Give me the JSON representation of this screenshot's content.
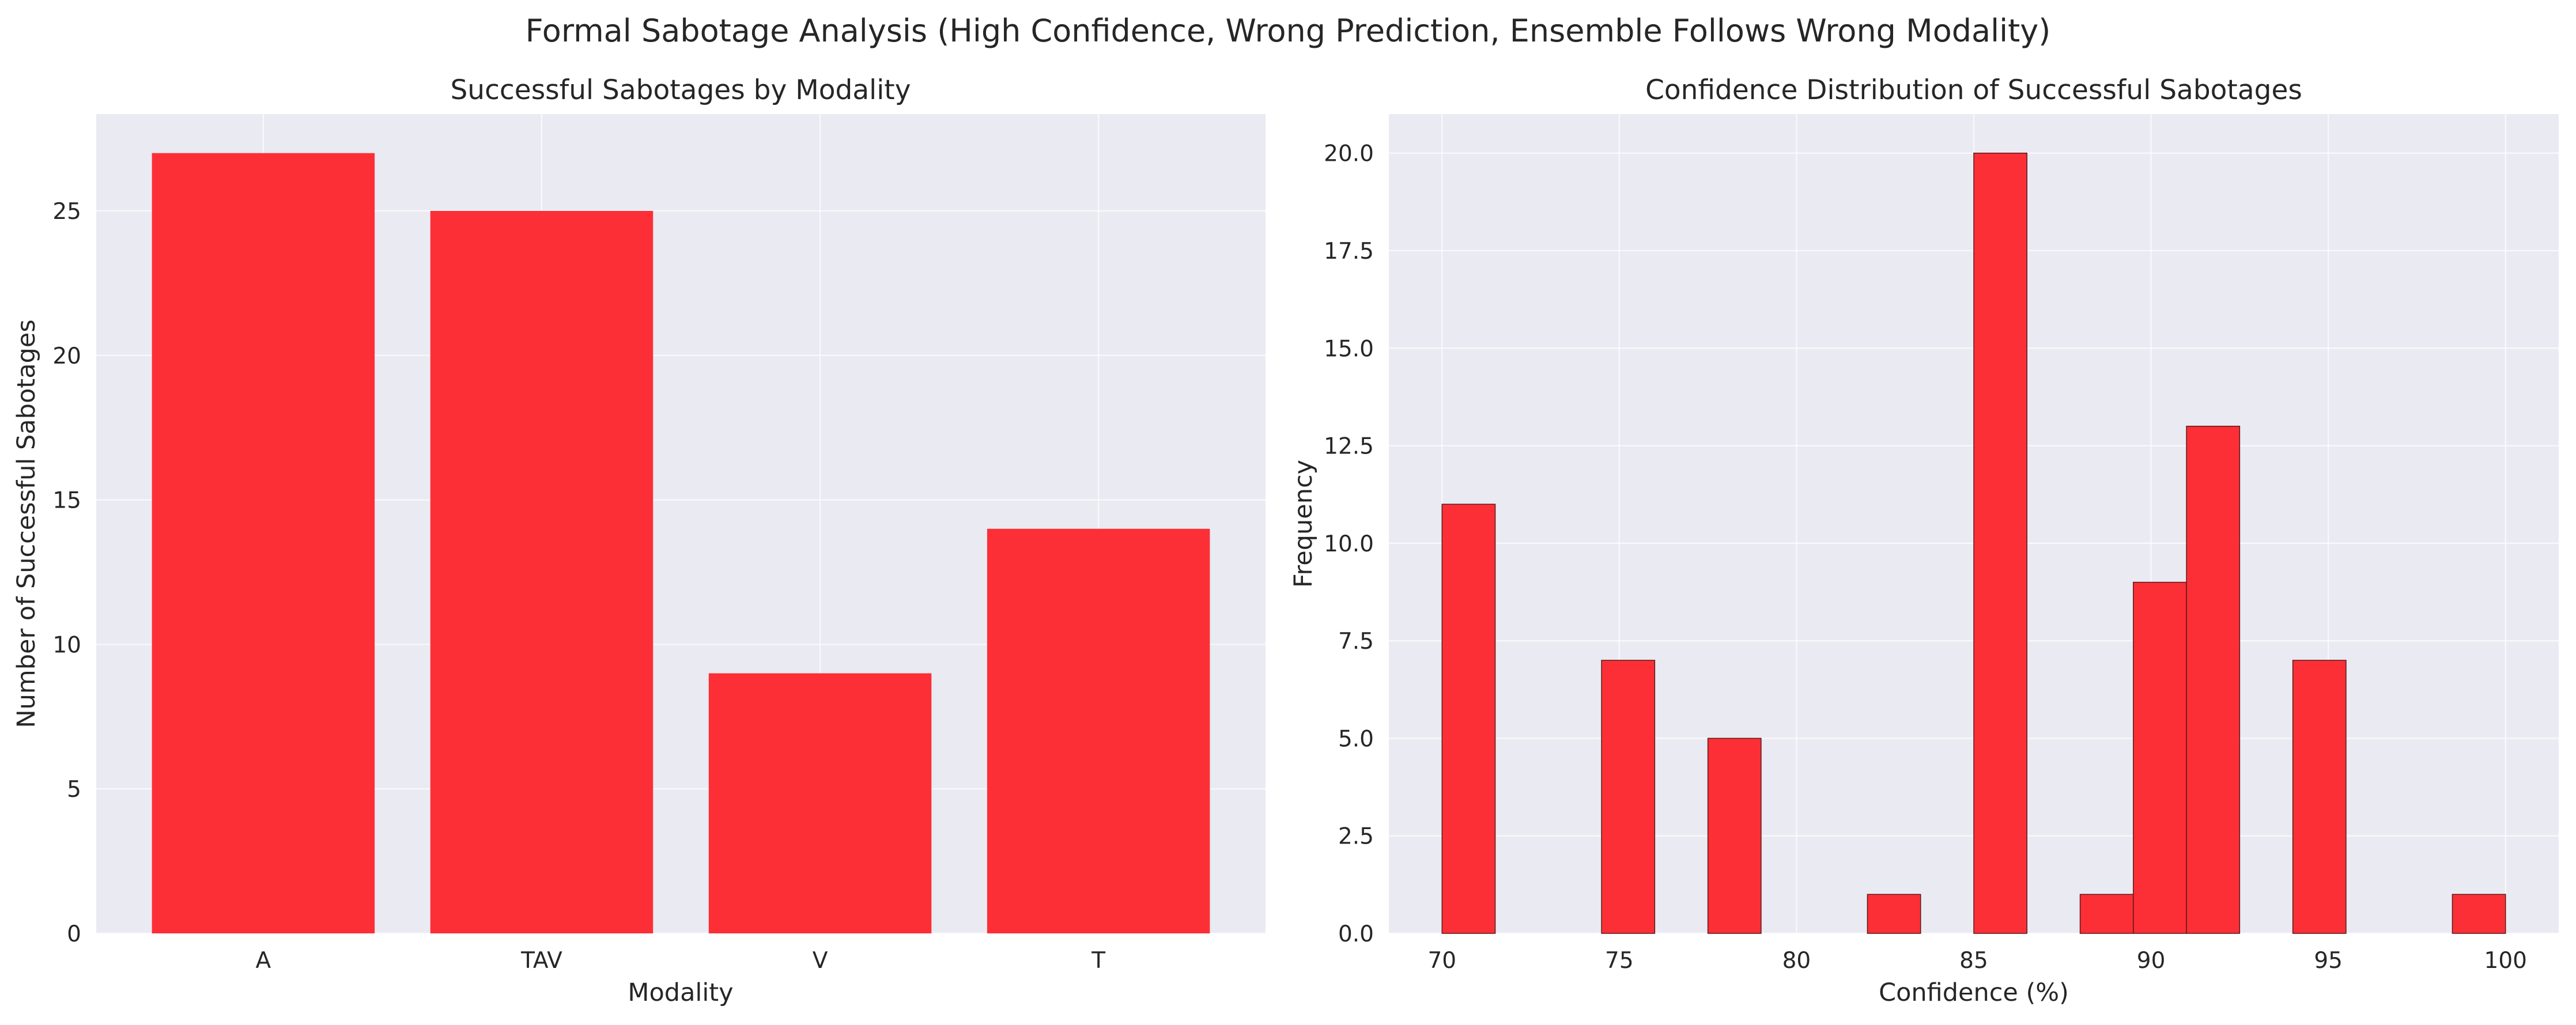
{
  "figure": {
    "title": "Formal Sabotage Analysis (High Confidence, Wrong Prediction, Ensemble Follows Wrong Modality)"
  },
  "colors": {
    "bar": "#fc2f36",
    "edge": "#5a1a1a",
    "plot_bg": "#eaeaf2",
    "grid": "#ffffff"
  },
  "chart_data": [
    {
      "type": "bar",
      "title": "Successful Sabotages by Modality",
      "xlabel": "Modality",
      "ylabel": "Number of Successful Sabotages",
      "categories": [
        "A",
        "TAV",
        "V",
        "T"
      ],
      "values": [
        27,
        25,
        9,
        14
      ],
      "ylim": [
        0,
        28.35
      ],
      "yticks": [
        0,
        5,
        10,
        15,
        20,
        25
      ],
      "ytick_labels": [
        "0",
        "5",
        "10",
        "15",
        "20",
        "25"
      ],
      "grid": true,
      "legend": "none"
    },
    {
      "type": "bar",
      "title": "Confidence Distribution of Successful Sabotages",
      "xlabel": "Confidence (%)",
      "ylabel": "Frequency",
      "bins": [
        {
          "start": 70.0,
          "end": 71.5,
          "count": 11
        },
        {
          "start": 74.5,
          "end": 76.0,
          "count": 7
        },
        {
          "start": 77.5,
          "end": 79.0,
          "count": 5
        },
        {
          "start": 82.0,
          "end": 83.5,
          "count": 1
        },
        {
          "start": 85.0,
          "end": 86.5,
          "count": 20
        },
        {
          "start": 88.0,
          "end": 89.5,
          "count": 1
        },
        {
          "start": 89.5,
          "end": 91.0,
          "count": 9
        },
        {
          "start": 91.0,
          "end": 92.5,
          "count": 13
        },
        {
          "start": 94.0,
          "end": 95.5,
          "count": 7
        },
        {
          "start": 98.5,
          "end": 100.0,
          "count": 1
        }
      ],
      "xlim": [
        68.5,
        101.5
      ],
      "xticks": [
        70,
        75,
        80,
        85,
        90,
        95,
        100
      ],
      "xtick_labels": [
        "70",
        "75",
        "80",
        "85",
        "90",
        "95",
        "100"
      ],
      "ylim": [
        0,
        21.0
      ],
      "yticks": [
        0,
        2.5,
        5,
        7.5,
        10,
        12.5,
        15,
        17.5,
        20
      ],
      "ytick_labels": [
        "0.0",
        "2.5",
        "5.0",
        "7.5",
        "10.0",
        "12.5",
        "15.0",
        "17.5",
        "20.0"
      ],
      "grid": true,
      "legend": "none"
    }
  ]
}
